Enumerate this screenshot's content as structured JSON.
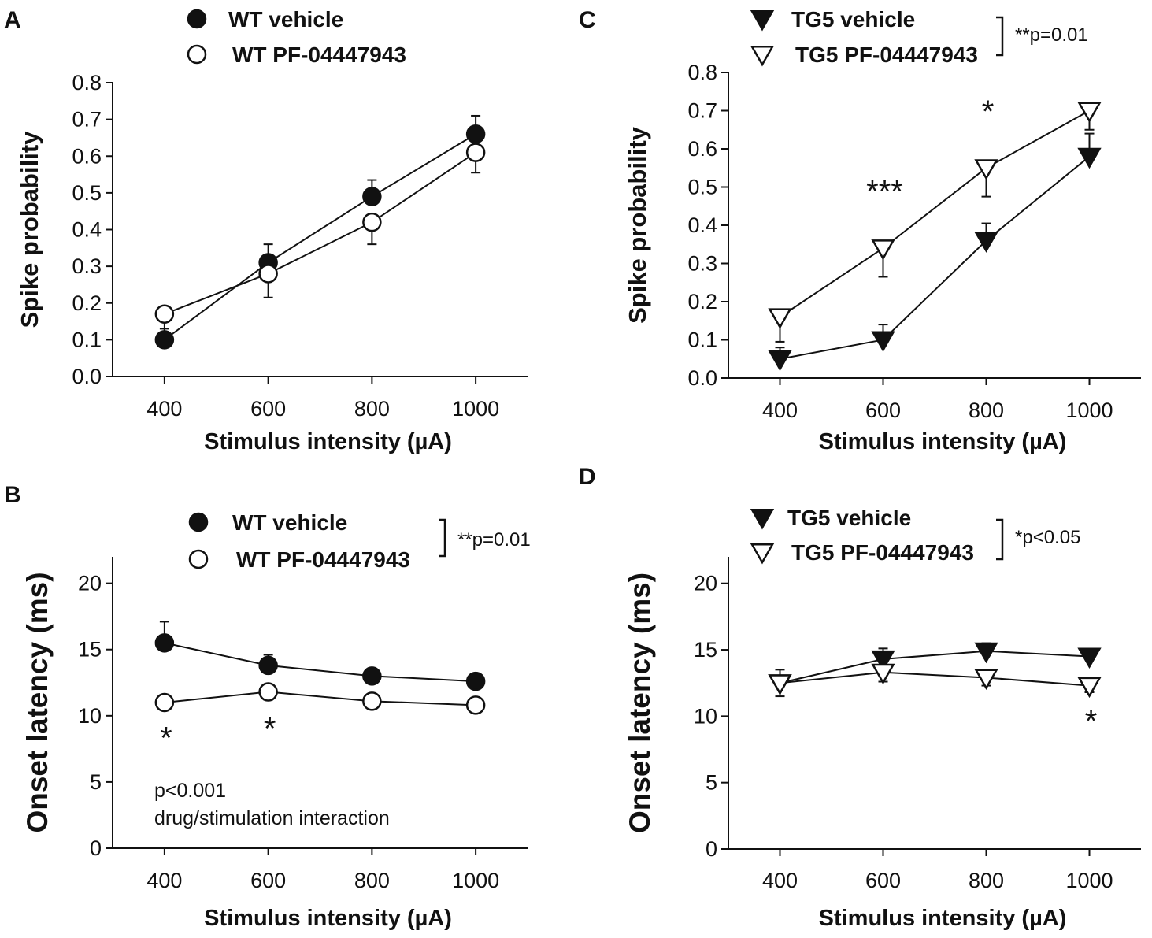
{
  "chart_data": [
    {
      "id": "A",
      "type": "line",
      "panel_label": "A",
      "xlabel": "Stimulus intensity (µA)",
      "ylabel": "Spike probability",
      "x": [
        400,
        600,
        800,
        1000
      ],
      "xticks": [
        "400",
        "600",
        "800",
        "1000"
      ],
      "xlim": [
        300,
        1100
      ],
      "ylim": [
        0,
        0.8
      ],
      "yticks": [
        "0.0",
        "0.1",
        "0.2",
        "0.3",
        "0.4",
        "0.5",
        "0.6",
        "0.7",
        "0.8"
      ],
      "series": [
        {
          "name": "WT vehicle",
          "marker": "circle",
          "fill": "#111111",
          "values": [
            0.1,
            0.31,
            0.49,
            0.66
          ],
          "errors": [
            0.03,
            0.05,
            0.045,
            0.05
          ]
        },
        {
          "name": "WT PF-04447943",
          "marker": "circle",
          "fill": "#ffffff",
          "values": [
            0.17,
            0.28,
            0.42,
            0.61
          ],
          "errors": [
            0.055,
            0.065,
            0.06,
            0.055
          ]
        }
      ],
      "significance": "",
      "stars": [],
      "annotation": []
    },
    {
      "id": "B",
      "type": "line",
      "panel_label": "B",
      "xlabel": "Stimulus intensity (µA)",
      "ylabel": "Onset latency (ms)",
      "x": [
        400,
        600,
        800,
        1000
      ],
      "xticks": [
        "400",
        "600",
        "800",
        "1000"
      ],
      "xlim": [
        300,
        1100
      ],
      "ylim": [
        0,
        22
      ],
      "yticks": [
        "0",
        "5",
        "10",
        "15",
        "20"
      ],
      "series": [
        {
          "name": "WT vehicle",
          "marker": "circle",
          "fill": "#111111",
          "values": [
            15.5,
            13.8,
            13.0,
            12.6
          ],
          "errors": [
            1.6,
            0.8,
            0.5,
            0.5
          ]
        },
        {
          "name": "WT PF-04447943",
          "marker": "circle",
          "fill": "#ffffff",
          "values": [
            11.0,
            11.8,
            11.1,
            10.8
          ],
          "errors": [
            0.5,
            0.6,
            0.5,
            0.5
          ]
        }
      ],
      "significance": "**p=0.01",
      "stars": [
        {
          "x": 400,
          "text": "*"
        },
        {
          "x": 600,
          "text": "*"
        }
      ],
      "annotation": [
        "p<0.001",
        "drug/stimulation interaction"
      ]
    },
    {
      "id": "C",
      "type": "line",
      "panel_label": "C",
      "xlabel": "Stimulus intensity (µA)",
      "ylabel": "Spike probability",
      "x": [
        400,
        600,
        800,
        1000
      ],
      "xticks": [
        "400",
        "600",
        "800",
        "1000"
      ],
      "xlim": [
        300,
        1100
      ],
      "ylim": [
        0,
        0.8
      ],
      "yticks": [
        "0.0",
        "0.1",
        "0.2",
        "0.3",
        "0.4",
        "0.5",
        "0.6",
        "0.7",
        "0.8"
      ],
      "series": [
        {
          "name": "TG5 vehicle",
          "marker": "triangle",
          "fill": "#111111",
          "values": [
            0.05,
            0.1,
            0.36,
            0.58
          ],
          "errors": [
            0.03,
            0.04,
            0.045,
            0.06
          ]
        },
        {
          "name": "TG5 PF-04447943",
          "marker": "triangle",
          "fill": "#ffffff",
          "values": [
            0.16,
            0.34,
            0.55,
            0.7
          ],
          "errors": [
            0.065,
            0.075,
            0.075,
            0.05
          ]
        }
      ],
      "significance": "**p=0.01",
      "stars": [
        {
          "x": 600,
          "text": "***"
        },
        {
          "x": 800,
          "text": "*"
        }
      ],
      "annotation": []
    },
    {
      "id": "D",
      "type": "line",
      "panel_label": "D",
      "xlabel": "Stimulus intensity (µA)",
      "ylabel": "Onset latency (ms)",
      "x": [
        400,
        600,
        800,
        1000
      ],
      "xticks": [
        "400",
        "600",
        "800",
        "1000"
      ],
      "xlim": [
        300,
        1100
      ],
      "ylim": [
        0,
        22
      ],
      "yticks": [
        "0",
        "5",
        "10",
        "15",
        "20"
      ],
      "series": [
        {
          "name": "TG5 vehicle",
          "marker": "triangle",
          "fill": "#111111",
          "values": [
            12.5,
            14.3,
            14.9,
            14.5
          ],
          "errors": [
            1.0,
            0.8,
            0.6,
            0.4
          ]
        },
        {
          "name": "TG5 PF-04447943",
          "marker": "triangle",
          "fill": "#ffffff",
          "values": [
            12.5,
            13.3,
            12.9,
            12.3
          ],
          "errors": [
            1.0,
            0.7,
            0.6,
            0.5
          ]
        }
      ],
      "significance": "*p<0.05",
      "stars": [
        {
          "x": 1000,
          "text": "*"
        }
      ],
      "annotation": []
    }
  ]
}
